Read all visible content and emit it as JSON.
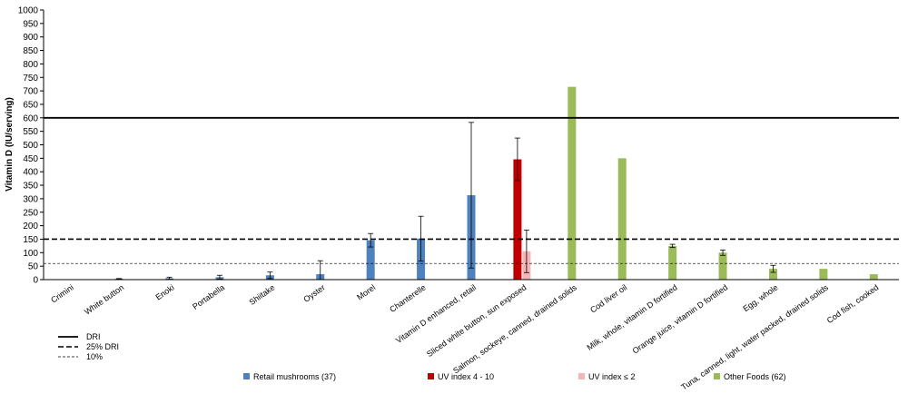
{
  "chart_data": {
    "type": "bar",
    "title": "",
    "xlabel": "",
    "ylabel": "Vitamin D (IU/serving)",
    "ylim": [
      0,
      1000
    ],
    "yticks": [
      0,
      50,
      100,
      150,
      200,
      250,
      300,
      350,
      400,
      450,
      500,
      550,
      600,
      650,
      700,
      750,
      800,
      850,
      900,
      950,
      1000
    ],
    "grid": false,
    "categories": [
      "Crimini",
      "White button",
      "Enoki",
      "Portabella",
      "Shiitake",
      "Oyster",
      "Morel",
      "Chanterelle",
      "Vitamin D enhanced, retail",
      "Sliced white button, sun exposed",
      "Salmon, sockeye, canned, drained solids",
      "Cod liver oil",
      "Milk, whole, vitamin D fortified",
      "Orange juice, vitamin D fortified",
      "Egg, whole",
      "Tuna, canned, light, water packed, drained solids",
      "Cod fish, cooked"
    ],
    "series": [
      {
        "name": "Retail mushrooms (37)",
        "color": "#4f81bd",
        "values": [
          1,
          3,
          5,
          9,
          16,
          20,
          146,
          152,
          313,
          null,
          null,
          null,
          null,
          null,
          null,
          null,
          null
        ],
        "error": [
          0,
          1,
          4,
          7,
          12,
          50,
          25,
          83,
          270,
          null,
          null,
          null,
          null,
          null,
          null,
          null,
          null
        ]
      },
      {
        "name": "UV index 4 - 10",
        "color": "#c00000",
        "values": [
          null,
          null,
          null,
          null,
          null,
          null,
          null,
          null,
          null,
          446,
          null,
          null,
          null,
          null,
          null,
          null,
          null
        ],
        "error": [
          null,
          null,
          null,
          null,
          null,
          null,
          null,
          null,
          null,
          79,
          null,
          null,
          null,
          null,
          null,
          null,
          null
        ]
      },
      {
        "name": "UV index ≤ 2",
        "color": "#f4b6b6",
        "values": [
          null,
          null,
          null,
          null,
          null,
          null,
          null,
          null,
          null,
          105,
          null,
          null,
          null,
          null,
          null,
          null,
          null
        ],
        "error": [
          null,
          null,
          null,
          null,
          null,
          null,
          null,
          null,
          null,
          79,
          null,
          null,
          null,
          null,
          null,
          null,
          null
        ]
      },
      {
        "name": "Other Foods (62)",
        "color": "#9bbb59",
        "values": [
          null,
          null,
          null,
          null,
          null,
          null,
          null,
          null,
          null,
          null,
          715,
          450,
          125,
          100,
          40,
          40,
          20
        ],
        "error": [
          null,
          null,
          null,
          null,
          null,
          null,
          null,
          null,
          null,
          null,
          0,
          0,
          6,
          10,
          13,
          0,
          0
        ]
      }
    ],
    "reference_lines": [
      {
        "name": "DRI",
        "value": 600,
        "style": "solid"
      },
      {
        "name": "25% DRI",
        "value": 150,
        "style": "dashed"
      },
      {
        "name": "10%",
        "value": 60,
        "style": "thin-dashed"
      }
    ],
    "legend_position": "bottom"
  }
}
